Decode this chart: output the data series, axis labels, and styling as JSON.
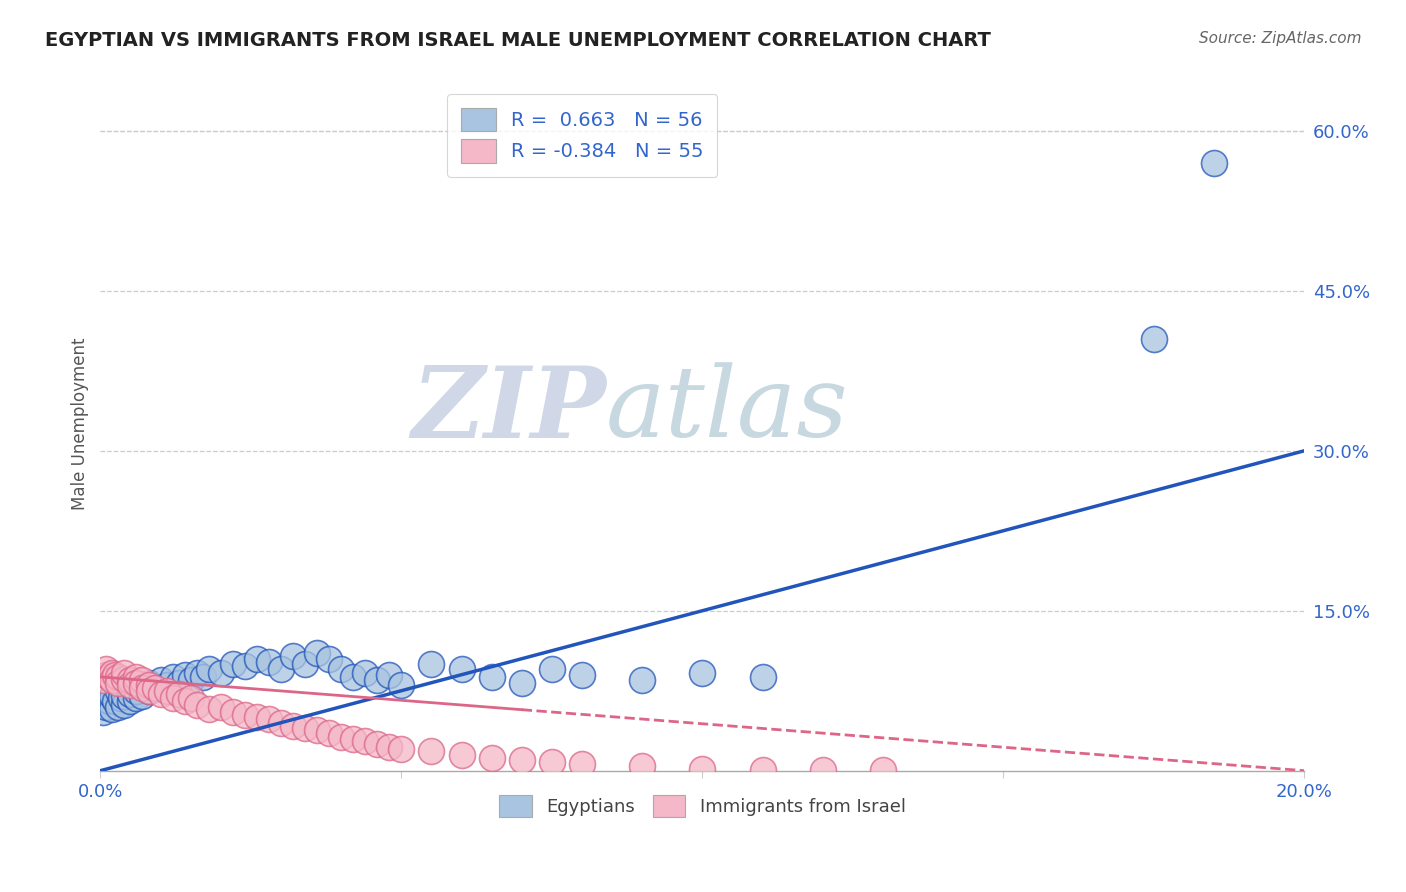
{
  "title": "EGYPTIAN VS IMMIGRANTS FROM ISRAEL MALE UNEMPLOYMENT CORRELATION CHART",
  "source": "Source: ZipAtlas.com",
  "ylabel": "Male Unemployment",
  "r_blue": 0.663,
  "n_blue": 56,
  "r_pink": -0.384,
  "n_pink": 55,
  "xlim": [
    0.0,
    0.2
  ],
  "ylim": [
    0.0,
    0.65
  ],
  "yticks": [
    0.15,
    0.3,
    0.45,
    0.6
  ],
  "ytick_labels": [
    "15.0%",
    "30.0%",
    "45.0%",
    "60.0%"
  ],
  "xtick_labels": [
    "0.0%",
    "",
    "",
    "",
    "20.0%"
  ],
  "xticks": [
    0.0,
    0.05,
    0.1,
    0.15,
    0.2
  ],
  "blue_color": "#a8c4e0",
  "pink_color": "#f4b8c8",
  "blue_line_color": "#2255bb",
  "pink_line_color": "#dd6688",
  "watermark_zip": "ZIP",
  "watermark_atlas": "atlas",
  "blue_scatter_x": [
    0.0005,
    0.001,
    0.0015,
    0.002,
    0.002,
    0.0025,
    0.003,
    0.003,
    0.0035,
    0.004,
    0.004,
    0.005,
    0.005,
    0.006,
    0.006,
    0.007,
    0.007,
    0.008,
    0.008,
    0.009,
    0.01,
    0.011,
    0.012,
    0.013,
    0.014,
    0.015,
    0.016,
    0.017,
    0.018,
    0.02,
    0.022,
    0.024,
    0.026,
    0.028,
    0.03,
    0.032,
    0.034,
    0.036,
    0.038,
    0.04,
    0.042,
    0.044,
    0.046,
    0.048,
    0.05,
    0.055,
    0.06,
    0.065,
    0.07,
    0.075,
    0.08,
    0.09,
    0.1,
    0.11,
    0.175,
    0.185
  ],
  "blue_scatter_y": [
    0.055,
    0.06,
    0.065,
    0.058,
    0.07,
    0.065,
    0.06,
    0.075,
    0.068,
    0.062,
    0.07,
    0.065,
    0.072,
    0.068,
    0.075,
    0.07,
    0.08,
    0.075,
    0.082,
    0.078,
    0.085,
    0.08,
    0.088,
    0.082,
    0.09,
    0.085,
    0.092,
    0.088,
    0.095,
    0.092,
    0.1,
    0.098,
    0.105,
    0.102,
    0.095,
    0.108,
    0.1,
    0.11,
    0.105,
    0.095,
    0.088,
    0.092,
    0.085,
    0.09,
    0.08,
    0.1,
    0.095,
    0.088,
    0.082,
    0.095,
    0.09,
    0.085,
    0.092,
    0.088,
    0.405,
    0.57
  ],
  "pink_scatter_x": [
    0.0005,
    0.001,
    0.001,
    0.0015,
    0.002,
    0.002,
    0.0025,
    0.003,
    0.003,
    0.004,
    0.004,
    0.005,
    0.005,
    0.006,
    0.006,
    0.007,
    0.007,
    0.008,
    0.008,
    0.009,
    0.01,
    0.011,
    0.012,
    0.013,
    0.014,
    0.015,
    0.016,
    0.018,
    0.02,
    0.022,
    0.024,
    0.026,
    0.028,
    0.03,
    0.032,
    0.034,
    0.036,
    0.038,
    0.04,
    0.042,
    0.044,
    0.046,
    0.048,
    0.05,
    0.055,
    0.06,
    0.065,
    0.07,
    0.075,
    0.08,
    0.09,
    0.1,
    0.11,
    0.12,
    0.13
  ],
  "pink_scatter_y": [
    0.085,
    0.09,
    0.095,
    0.088,
    0.092,
    0.085,
    0.09,
    0.088,
    0.082,
    0.086,
    0.092,
    0.085,
    0.08,
    0.088,
    0.082,
    0.085,
    0.078,
    0.08,
    0.075,
    0.078,
    0.072,
    0.075,
    0.068,
    0.072,
    0.065,
    0.068,
    0.062,
    0.058,
    0.06,
    0.055,
    0.052,
    0.05,
    0.048,
    0.045,
    0.042,
    0.04,
    0.038,
    0.035,
    0.032,
    0.03,
    0.028,
    0.025,
    0.022,
    0.02,
    0.018,
    0.015,
    0.012,
    0.01,
    0.008,
    0.006,
    0.004,
    0.002,
    0.001,
    0.001,
    0.001
  ],
  "blue_trend_x": [
    0.0,
    0.2
  ],
  "blue_trend_y": [
    0.0,
    0.3
  ],
  "pink_trend_x": [
    0.0,
    0.2
  ],
  "pink_trend_y": [
    0.088,
    0.0
  ],
  "pink_trend_solid_end": 0.07,
  "legend_text_color": "#3366cc"
}
